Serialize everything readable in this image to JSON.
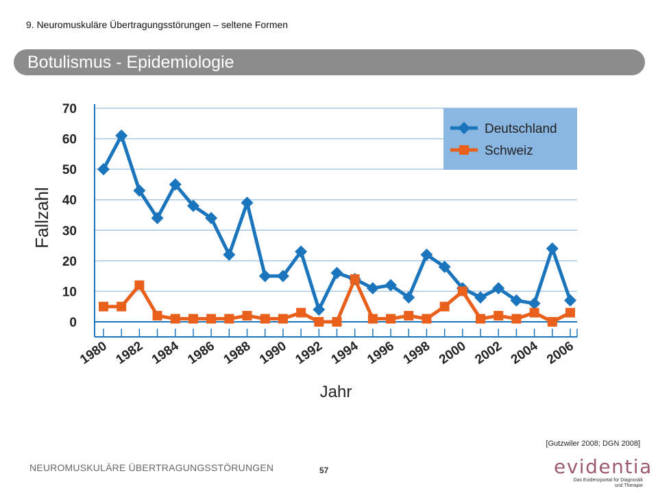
{
  "header": {
    "section_title": "9. Neuromuskuläre Übertragungsstörungen – seltene Formen",
    "slide_title": "Botulismus - Epidemiologie"
  },
  "citation": "[Gutzwiler 2008; DGN 2008]",
  "footer": {
    "text": "NEUROMUSKULÄRE ÜBERTRAGUNGSSTÖRUNGEN",
    "page_number": "57"
  },
  "logo": {
    "name": "evidentia",
    "tagline_line1": "Das Evidenzportal für Diagnostik",
    "tagline_line2": "und Therapie"
  },
  "colors": {
    "deutschland": "#1b75bc",
    "schweiz": "#e8601c",
    "legend_bg": "#8ab7e1",
    "grid": "#a8c7e6",
    "title_bar": "#8c8c8c"
  },
  "chart_data": {
    "type": "line",
    "xlabel": "Jahr",
    "ylabel": "Fallzahl",
    "x": [
      1980,
      1981,
      1982,
      1983,
      1984,
      1985,
      1986,
      1987,
      1988,
      1989,
      1990,
      1991,
      1992,
      1993,
      1994,
      1995,
      1996,
      1997,
      1998,
      1999,
      2000,
      2001,
      2002,
      2003,
      2004,
      2005,
      2006
    ],
    "xticks": [
      "1980",
      "1982",
      "1984",
      "1986",
      "1988",
      "1990",
      "1992",
      "1994",
      "1996",
      "1998",
      "2000",
      "2002",
      "2004",
      "2006"
    ],
    "ylim": [
      0,
      70
    ],
    "yticks": [
      "0",
      "10",
      "20",
      "30",
      "40",
      "50",
      "60",
      "70"
    ],
    "grid": true,
    "legend_position": "top-right",
    "series": [
      {
        "name": "Deutschland",
        "marker": "diamond",
        "values": [
          50,
          61,
          43,
          34,
          45,
          38,
          34,
          22,
          39,
          15,
          15,
          23,
          4,
          16,
          14,
          11,
          12,
          8,
          22,
          18,
          11,
          8,
          11,
          7,
          6,
          24,
          7
        ]
      },
      {
        "name": "Schweiz",
        "marker": "square",
        "values": [
          5,
          5,
          12,
          2,
          1,
          1,
          1,
          1,
          2,
          1,
          1,
          3,
          0,
          0,
          14,
          1,
          1,
          2,
          1,
          5,
          10,
          1,
          2,
          1,
          3,
          0,
          3
        ]
      }
    ]
  }
}
